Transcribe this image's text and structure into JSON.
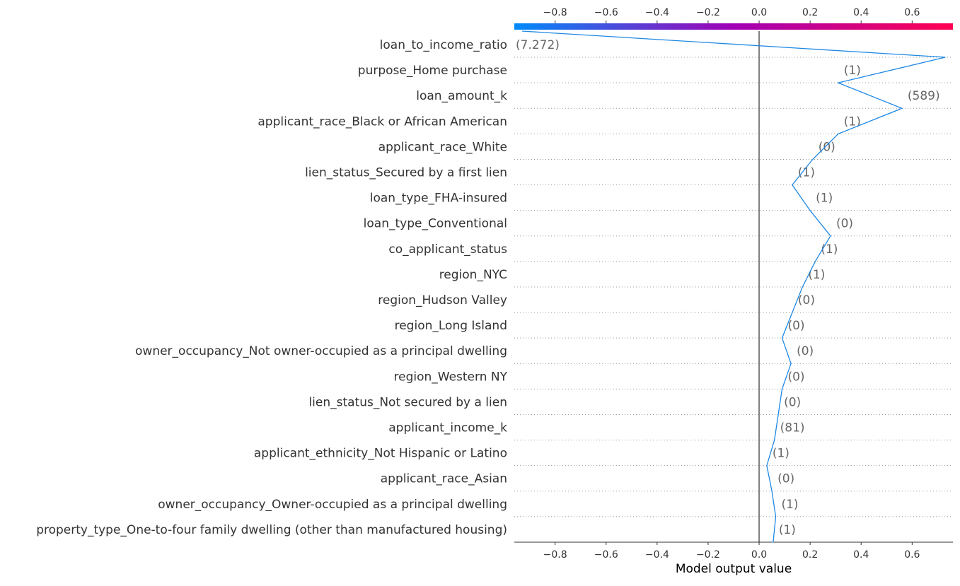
{
  "chart_data": {
    "type": "line",
    "title": "",
    "xlabel": "Model output value",
    "ylabel": "",
    "xlim": [
      -0.96,
      0.76
    ],
    "xticks": [
      -0.8,
      -0.6,
      -0.4,
      -0.2,
      0.0,
      0.2,
      0.4,
      0.6
    ],
    "xtick_labels": [
      "−0.8",
      "−0.6",
      "−0.4",
      "−0.2",
      "0.0",
      "0.2",
      "0.4",
      "0.6"
    ],
    "base_value": 0.0,
    "grid": "dotted horizontal separators",
    "colorbar": {
      "location": "top",
      "low_color": "#008bfb",
      "mid_color": "#a100b5",
      "high_color": "#ff0052"
    },
    "line_color": "#1e88e5",
    "start_value": 0.05,
    "features": [
      {
        "name": "loan_to_income_ratio",
        "value": "(7.272)",
        "output": 0.73
      },
      {
        "name": "purpose_Home purchase",
        "value": "(1)",
        "output": 0.31
      },
      {
        "name": "loan_amount_k",
        "value": "(589)",
        "output": 0.56
      },
      {
        "name": "applicant_race_Black or African American",
        "value": "(1)",
        "output": 0.31
      },
      {
        "name": "applicant_race_White",
        "value": "(0)",
        "output": 0.21
      },
      {
        "name": "lien_status_Secured by a first lien",
        "value": "(1)",
        "output": 0.13
      },
      {
        "name": "loan_type_FHA-insured",
        "value": "(1)",
        "output": 0.2
      },
      {
        "name": "loan_type_Conventional",
        "value": "(0)",
        "output": 0.28
      },
      {
        "name": "co_applicant_status",
        "value": "(1)",
        "output": 0.22
      },
      {
        "name": "region_NYC",
        "value": "(1)",
        "output": 0.17
      },
      {
        "name": "region_Hudson Valley",
        "value": "(0)",
        "output": 0.13
      },
      {
        "name": "region_Long Island",
        "value": "(0)",
        "output": 0.09
      },
      {
        "name": "owner_occupancy_Not owner-occupied as a principal dwelling",
        "value": "(0)",
        "output": 0.125
      },
      {
        "name": "region_Western NY",
        "value": "(0)",
        "output": 0.09
      },
      {
        "name": "lien_status_Not secured by a lien",
        "value": "(0)",
        "output": 0.075
      },
      {
        "name": "applicant_income_k",
        "value": "(81)",
        "output": 0.06
      },
      {
        "name": "applicant_ethnicity_Not Hispanic or Latino",
        "value": "(1)",
        "output": 0.03
      },
      {
        "name": "applicant_race_Asian",
        "value": "(0)",
        "output": 0.05
      },
      {
        "name": "owner_occupancy_Owner-occupied as a principal dwelling",
        "value": "(1)",
        "output": 0.065
      },
      {
        "name": "property_type_One-to-four family dwelling (other than manufactured housing)",
        "value": "(1)",
        "output": 0.055
      }
    ],
    "final_value": -0.93
  }
}
